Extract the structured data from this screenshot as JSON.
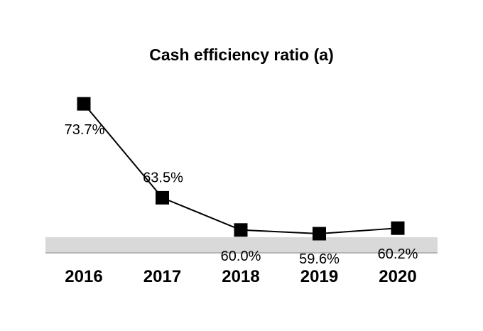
{
  "chart_data": {
    "type": "line",
    "title": "Cash efficiency ratio (a)",
    "categories": [
      "2016",
      "2017",
      "2018",
      "2019",
      "2020"
    ],
    "series": [
      {
        "name": "Cash efficiency ratio",
        "values": [
          73.7,
          63.5,
          60.0,
          59.6,
          60.2
        ],
        "labels": [
          "73.7%",
          "63.5%",
          "60.0%",
          "59.6%",
          "60.2%"
        ]
      }
    ],
    "xlabel": "",
    "ylabel": "",
    "ylim": [
      55,
      77
    ],
    "grid": false,
    "legend": "none",
    "marker": "square",
    "colors": {
      "line": "#000000",
      "marker": "#000000",
      "axis_band": "#d9d9d9",
      "axis_line": "#a6a6a6"
    }
  }
}
